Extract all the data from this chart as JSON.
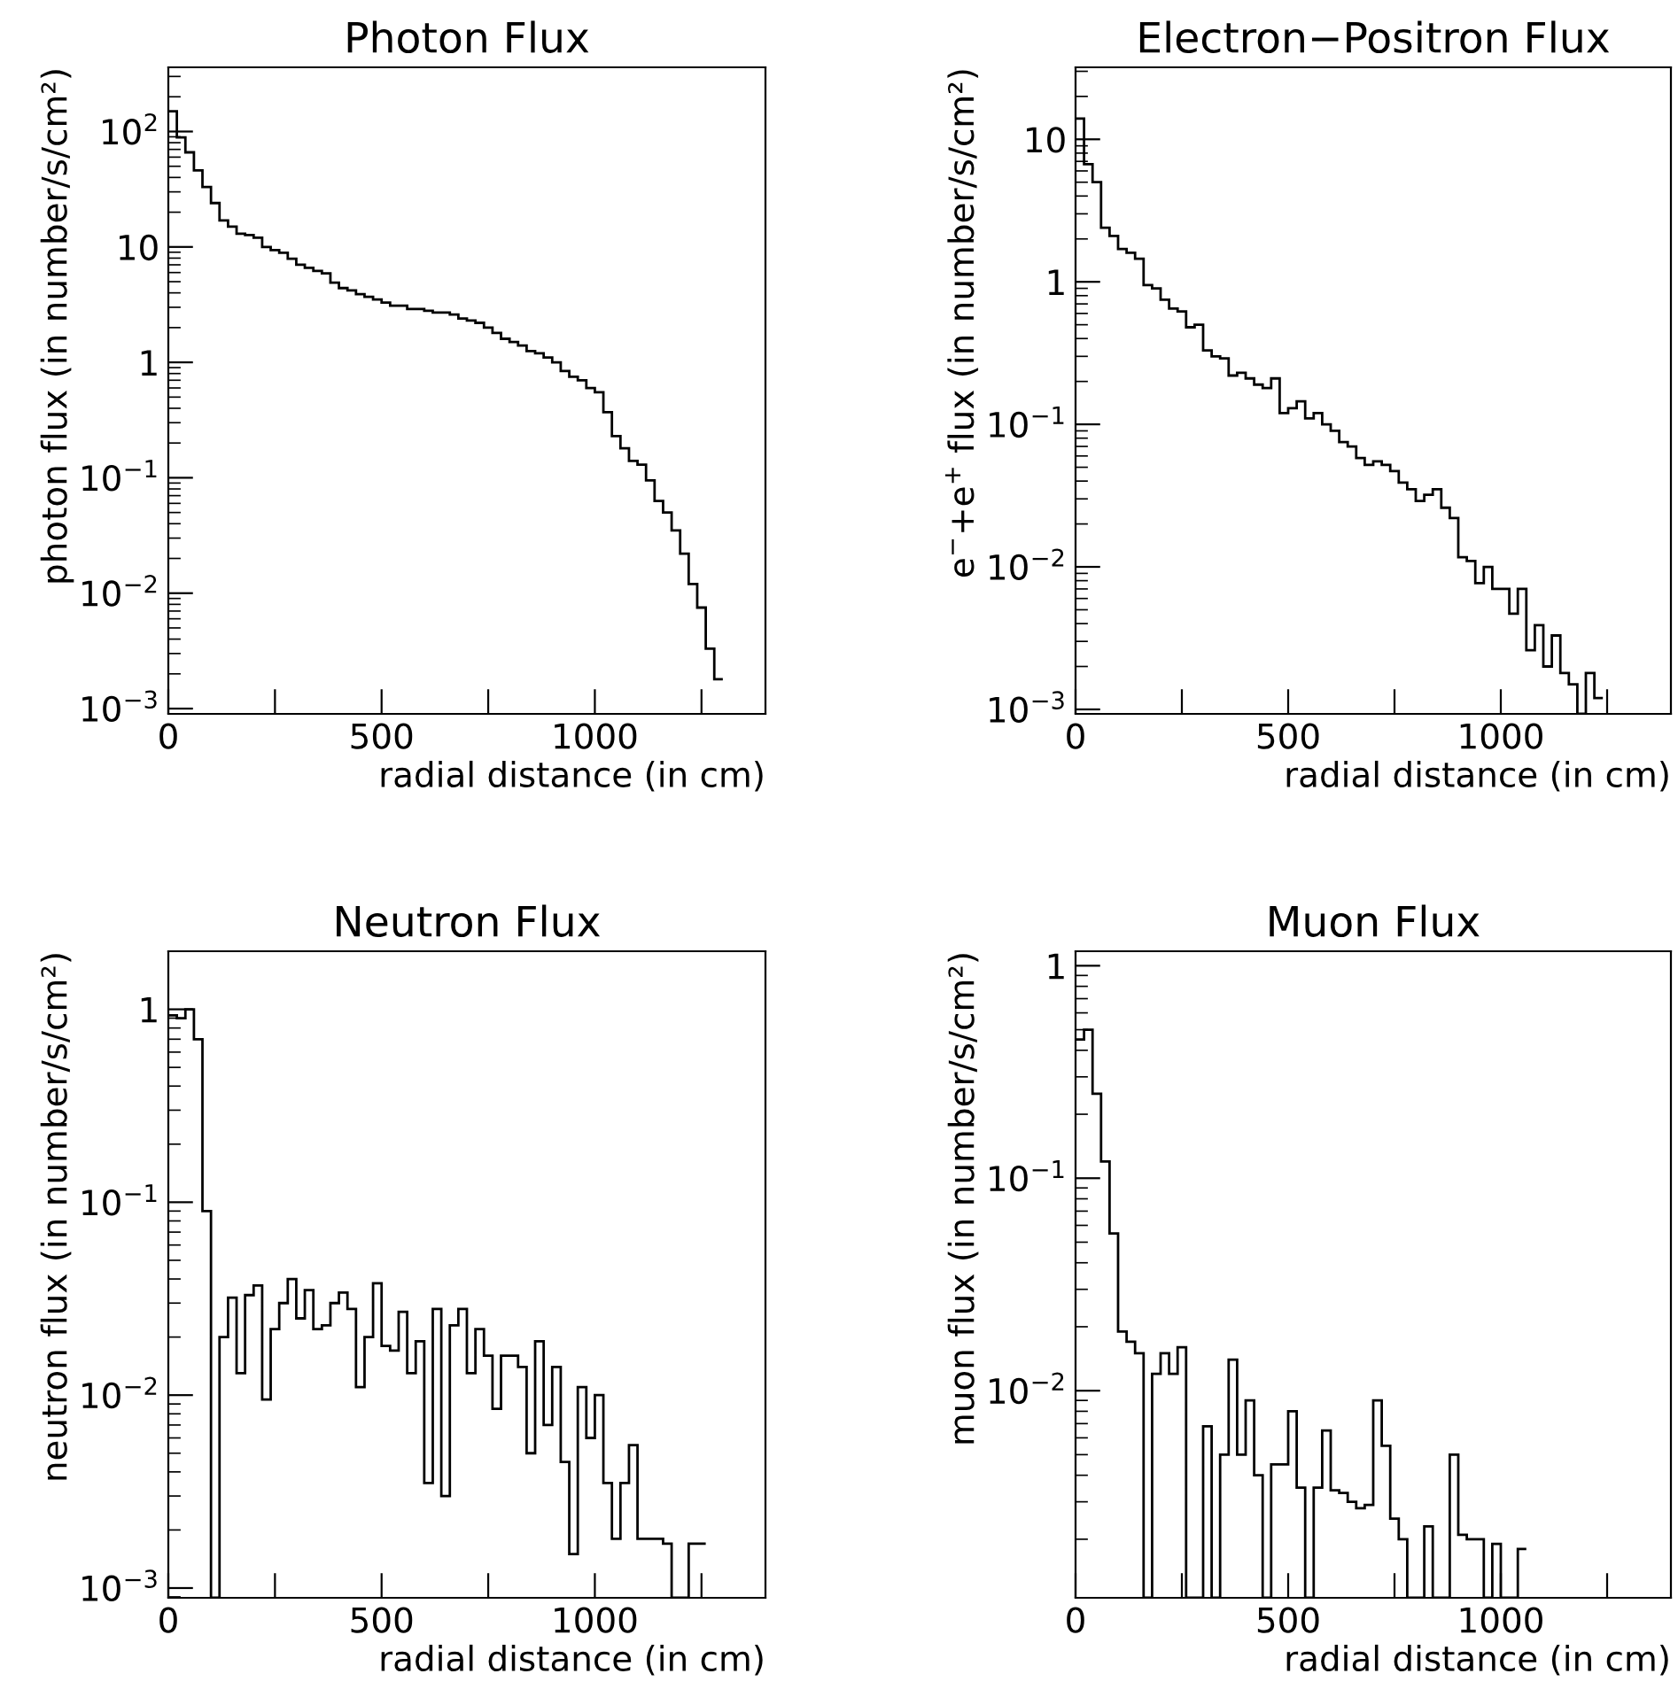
{
  "chart_data": [
    {
      "type": "histogram",
      "title": "Photon Flux",
      "xlabel": "radial distance (in cm)",
      "ylabel": "photon flux (in number/s/cm²)",
      "log": true,
      "bins": [
        0,
        20,
        40,
        60,
        80,
        100,
        120,
        140,
        160,
        180,
        200,
        220,
        240,
        260,
        280,
        300,
        320,
        340,
        360,
        380,
        400,
        420,
        440,
        460,
        480,
        500,
        520,
        540,
        560,
        580,
        600,
        620,
        640,
        660,
        680,
        700,
        720,
        740,
        760,
        780,
        800,
        820,
        840,
        860,
        880,
        900,
        920,
        940,
        960,
        980,
        1000,
        1020,
        1040,
        1060,
        1080,
        1100,
        1120,
        1140,
        1160,
        1180,
        1200,
        1220,
        1240,
        1260,
        1280,
        1300
      ],
      "values": [
        150,
        89,
        66,
        46,
        33,
        24,
        17,
        15,
        13,
        12.7,
        12,
        10,
        9.4,
        8.9,
        7.9,
        7,
        6.6,
        6.2,
        5.9,
        4.9,
        4.4,
        4.2,
        3.9,
        3.7,
        3.5,
        3.3,
        3.1,
        3.1,
        2.9,
        2.9,
        2.8,
        2.7,
        2.7,
        2.6,
        2.4,
        2.3,
        2.2,
        2.0,
        1.8,
        1.6,
        1.5,
        1.4,
        1.25,
        1.2,
        1.1,
        1.0,
        0.84,
        0.75,
        0.7,
        0.6,
        0.55,
        0.37,
        0.23,
        0.18,
        0.14,
        0.13,
        0.095,
        0.063,
        0.05,
        0.035,
        0.022,
        0.012,
        0.0075,
        0.0033,
        0.0018
      ],
      "xlim": [
        0,
        1400
      ],
      "xticks": [
        0,
        {
          "value": 250,
          "label": null
        },
        500,
        {
          "value": 750,
          "label": null
        },
        1000,
        {
          "value": 1250,
          "label": null
        }
      ],
      "ylim": [
        0.0009,
        360
      ],
      "yticks": [
        {
          "value": 0.001,
          "label": "10$^{−3}$"
        },
        {
          "value": 0.01,
          "label": "10$^{−2}$"
        },
        {
          "value": 0.1,
          "label": "10$^{−1}$"
        },
        1,
        10,
        {
          "value": 100,
          "label": "10$^{2}$"
        }
      ]
    },
    {
      "type": "histogram",
      "title": "Electron−Positron Flux",
      "xlabel": "radial distance (in cm)",
      "ylabel": "e$^{−}$+e$^{+}$ flux (in number/s/cm²)",
      "log": true,
      "bins": [
        0,
        20,
        40,
        60,
        80,
        100,
        120,
        140,
        160,
        180,
        200,
        220,
        240,
        260,
        280,
        300,
        320,
        340,
        360,
        380,
        400,
        420,
        440,
        460,
        480,
        500,
        520,
        540,
        560,
        580,
        600,
        620,
        640,
        660,
        680,
        700,
        720,
        740,
        760,
        780,
        800,
        820,
        840,
        860,
        880,
        900,
        920,
        940,
        960,
        980,
        1000,
        1020,
        1040,
        1060,
        1080,
        1100,
        1120,
        1140,
        1160,
        1180,
        1200,
        1220,
        1240
      ],
      "values": [
        14,
        6.7,
        5.0,
        2.4,
        2.1,
        1.7,
        1.6,
        1.45,
        0.95,
        0.9,
        0.75,
        0.65,
        0.62,
        0.48,
        0.5,
        0.33,
        0.3,
        0.29,
        0.22,
        0.23,
        0.21,
        0.19,
        0.18,
        0.21,
        0.12,
        0.13,
        0.145,
        0.11,
        0.12,
        0.1,
        0.09,
        0.075,
        0.07,
        0.058,
        0.052,
        0.055,
        0.052,
        0.047,
        0.039,
        0.035,
        0.029,
        0.032,
        0.035,
        0.026,
        0.022,
        0.0117,
        0.011,
        0.0077,
        0.01,
        0.007,
        0.007,
        0.0047,
        0.007,
        0.0026,
        0.0039,
        0.002,
        0.0033,
        0.0018,
        0.0015,
        null,
        0.0018,
        0.0012
      ],
      "xlim": [
        0,
        1400
      ],
      "xticks": [
        0,
        {
          "value": 250,
          "label": null
        },
        500,
        {
          "value": 750,
          "label": null
        },
        1000,
        {
          "value": 1250,
          "label": null
        }
      ],
      "ylim": [
        0.00093,
        32
      ],
      "yticks": [
        {
          "value": 0.001,
          "label": "10$^{−3}$"
        },
        {
          "value": 0.01,
          "label": "10$^{−2}$"
        },
        {
          "value": 0.1,
          "label": "10$^{−1}$"
        },
        1,
        10
      ]
    },
    {
      "type": "histogram",
      "title": "Neutron Flux",
      "xlabel": "radial distance (in cm)",
      "ylabel": "neutron flux (in number/s/cm²)",
      "log": true,
      "bins": [
        0,
        20,
        40,
        60,
        80,
        100,
        120,
        140,
        160,
        180,
        200,
        220,
        240,
        260,
        280,
        300,
        320,
        340,
        360,
        380,
        400,
        420,
        440,
        460,
        480,
        500,
        520,
        540,
        560,
        580,
        600,
        620,
        640,
        660,
        680,
        700,
        720,
        740,
        760,
        780,
        800,
        820,
        840,
        860,
        880,
        900,
        920,
        940,
        960,
        980,
        1000,
        1020,
        1040,
        1060,
        1080,
        1100,
        1120,
        1140,
        1160,
        1180,
        1200,
        1220,
        1240,
        1260
      ],
      "values": [
        0.93,
        0.9,
        1.0,
        0.7,
        0.09,
        null,
        0.02,
        0.032,
        0.013,
        0.033,
        0.037,
        0.0095,
        0.022,
        0.03,
        0.04,
        0.025,
        0.035,
        0.022,
        0.023,
        0.03,
        0.034,
        0.028,
        0.011,
        0.02,
        0.038,
        0.018,
        0.017,
        0.027,
        0.013,
        0.019,
        0.0035,
        0.028,
        0.003,
        0.023,
        0.028,
        0.013,
        0.022,
        0.016,
        0.0085,
        0.016,
        0.016,
        0.014,
        0.005,
        0.019,
        0.007,
        0.014,
        0.0045,
        0.0015,
        0.011,
        0.006,
        0.01,
        0.0035,
        0.0018,
        0.0035,
        0.0055,
        0.0018,
        0.0018,
        0.0018,
        0.0017,
        null,
        null,
        0.0017,
        0.0017
      ],
      "xlim": [
        0,
        1400
      ],
      "xticks": [
        0,
        {
          "value": 250,
          "label": null
        },
        500,
        {
          "value": 750,
          "label": null
        },
        1000,
        {
          "value": 1250,
          "label": null
        }
      ],
      "ylim": [
        0.00089,
        2.0
      ],
      "yticks": [
        {
          "value": 0.001,
          "label": "10$^{−3}$"
        },
        {
          "value": 0.01,
          "label": "10$^{−2}$"
        },
        {
          "value": 0.1,
          "label": "10$^{−1}$"
        },
        1
      ]
    },
    {
      "type": "histogram",
      "title": "Muon Flux",
      "xlabel": "radial distance (in cm)",
      "ylabel": "muon flux (in number/s/cm²)",
      "log": true,
      "bins": [
        0,
        20,
        40,
        60,
        80,
        100,
        120,
        140,
        160,
        180,
        200,
        220,
        240,
        260,
        280,
        300,
        320,
        340,
        360,
        380,
        400,
        420,
        440,
        460,
        480,
        500,
        520,
        540,
        560,
        580,
        600,
        620,
        640,
        660,
        680,
        700,
        720,
        740,
        760,
        780,
        800,
        820,
        840,
        860,
        880,
        900,
        920,
        940,
        960,
        980,
        1000,
        1020,
        1040,
        1060
      ],
      "values": [
        0.45,
        0.5,
        0.25,
        0.12,
        0.055,
        0.019,
        0.017,
        0.015,
        null,
        0.012,
        0.015,
        0.012,
        0.016,
        null,
        null,
        0.0068,
        null,
        0.005,
        0.014,
        0.005,
        0.009,
        0.004,
        null,
        0.0045,
        0.0045,
        0.008,
        0.0035,
        null,
        0.0035,
        0.0065,
        0.0034,
        0.0033,
        0.003,
        0.0028,
        0.0029,
        0.009,
        0.0055,
        0.0025,
        0.002,
        null,
        null,
        0.0023,
        null,
        null,
        0.005,
        0.0021,
        0.002,
        0.002,
        null,
        0.0019,
        null,
        null,
        0.0018
      ],
      "xlim": [
        0,
        1400
      ],
      "xticks": [
        0,
        {
          "value": 250,
          "label": null
        },
        500,
        {
          "value": 750,
          "label": null
        },
        1000,
        {
          "value": 1250,
          "label": null
        }
      ],
      "ylim": [
        0.00106,
        1.17
      ],
      "yticks": [
        {
          "value": 0.01,
          "label": "10$^{−2}$"
        },
        {
          "value": 0.1,
          "label": "10$^{−1}$"
        },
        1
      ]
    }
  ]
}
